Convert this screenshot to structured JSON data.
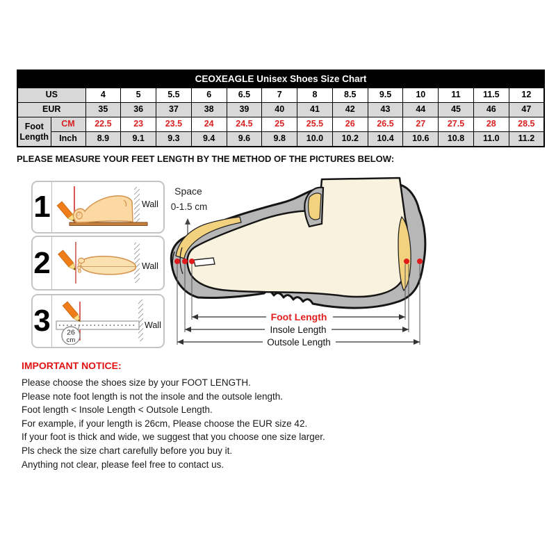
{
  "size_chart": {
    "title": "CEOXEAGLE Unisex Shoes Size Chart",
    "rows": {
      "us": {
        "label": "US",
        "values": [
          "4",
          "5",
          "5.5",
          "6",
          "6.5",
          "7",
          "8",
          "8.5",
          "9.5",
          "10",
          "11",
          "11.5",
          "12"
        ]
      },
      "eur": {
        "label": "EUR",
        "values": [
          "35",
          "36",
          "37",
          "38",
          "39",
          "40",
          "41",
          "42",
          "43",
          "44",
          "45",
          "46",
          "47"
        ]
      },
      "foot_length_label": "Foot Length",
      "cm": {
        "label": "CM",
        "values": [
          "22.5",
          "23",
          "23.5",
          "24",
          "24.5",
          "25",
          "25.5",
          "26",
          "26.5",
          "27",
          "27.5",
          "28",
          "28.5"
        ]
      },
      "inch": {
        "label": "Inch",
        "values": [
          "8.9",
          "9.1",
          "9.3",
          "9.4",
          "9.6",
          "9.8",
          "10.0",
          "10.2",
          "10.4",
          "10.6",
          "10.8",
          "11.0",
          "11.2"
        ]
      }
    }
  },
  "measure_instruction": "PLEASE MEASURE YOUR FEET LENGTH BY THE METHOD OF THE PICTURES BELOW:",
  "diagram": {
    "steps": [
      {
        "number": "1",
        "wall_label": "Wall"
      },
      {
        "number": "2",
        "wall_label": "Wall"
      },
      {
        "number": "3",
        "wall_label": "Wall",
        "ruler_reading": "26",
        "ruler_unit": "cm"
      }
    ],
    "space_label": "Space",
    "space_value": "0-1.5 cm",
    "foot_length_label": "Foot Length",
    "insole_length_label": "Insole Length",
    "outsole_length_label": "Outsole Length"
  },
  "notice": {
    "heading": "IMPORTANT NOTICE:",
    "lines": [
      "Please choose the shoes size by your FOOT LENGTH.",
      "Please note foot length is not the insole and the outsole length.",
      "Foot length < Insole Length < Outsole Length.",
      "For example, if your length is 26cm, Please choose the EUR size 42.",
      "If your foot is thick and wide, we suggest that you choose one size larger.",
      "Pls check the size chart carefully before you buy it.",
      "Anything not clear, please feel free to contact us."
    ]
  },
  "colors": {
    "accent_red": "#d92121",
    "table_header_gray": "#d8d8d8",
    "title_bar_black": "#000000",
    "shoe_gray": "#b7b7b7",
    "foot_cream": "#f8f2de",
    "lining_yellow": "#f3d27f",
    "pencil_orange": "#ef7d1a"
  }
}
